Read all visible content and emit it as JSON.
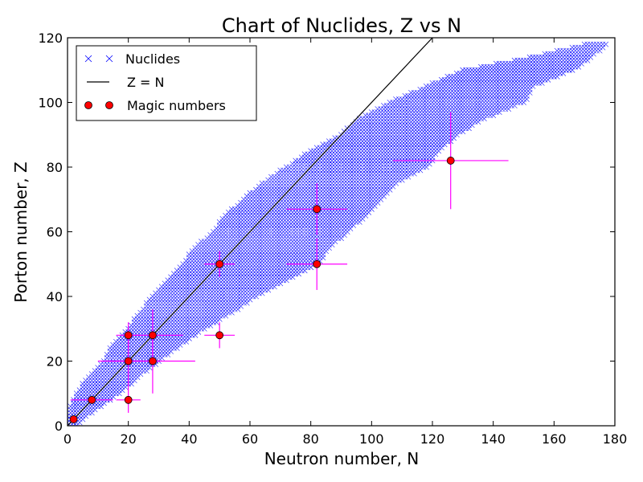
{
  "chart_data": {
    "type": "scatter",
    "title": "Chart of Nuclides, Z vs N",
    "xlabel": "Neutron number, N",
    "ylabel": "Porton number, Z",
    "xlim": [
      0,
      180
    ],
    "ylim": [
      0,
      120
    ],
    "xticks": [
      "0",
      "20",
      "40",
      "60",
      "80",
      "100",
      "120",
      "140",
      "160",
      "180"
    ],
    "yticks": [
      "0",
      "20",
      "40",
      "60",
      "80",
      "100",
      "120"
    ],
    "grid": false,
    "legend_position": "top-left",
    "series": [
      {
        "name": "Nuclides",
        "marker": "x",
        "color": "#0000ff",
        "band": [
          {
            "z": 0,
            "n_min": 0,
            "n_max": 3
          },
          {
            "z": 2,
            "n_min": 0,
            "n_max": 5
          },
          {
            "z": 5,
            "n_min": 1,
            "n_max": 9
          },
          {
            "z": 10,
            "n_min": 3,
            "n_max": 17
          },
          {
            "z": 15,
            "n_min": 7,
            "n_max": 23
          },
          {
            "z": 20,
            "n_min": 12,
            "n_max": 30
          },
          {
            "z": 25,
            "n_min": 15,
            "n_max": 37
          },
          {
            "z": 30,
            "n_min": 20,
            "n_max": 45
          },
          {
            "z": 35,
            "n_min": 24,
            "n_max": 54
          },
          {
            "z": 40,
            "n_min": 28,
            "n_max": 62
          },
          {
            "z": 45,
            "n_min": 33,
            "n_max": 72
          },
          {
            "z": 50,
            "n_min": 38,
            "n_max": 82
          },
          {
            "z": 55,
            "n_min": 42,
            "n_max": 86
          },
          {
            "z": 60,
            "n_min": 48,
            "n_max": 92
          },
          {
            "z": 65,
            "n_min": 52,
            "n_max": 98
          },
          {
            "z": 70,
            "n_min": 58,
            "n_max": 103
          },
          {
            "z": 75,
            "n_min": 64,
            "n_max": 108
          },
          {
            "z": 80,
            "n_min": 72,
            "n_max": 118
          },
          {
            "z": 85,
            "n_min": 80,
            "n_max": 122
          },
          {
            "z": 90,
            "n_min": 90,
            "n_max": 128
          },
          {
            "z": 95,
            "n_min": 96,
            "n_max": 137
          },
          {
            "z": 100,
            "n_min": 106,
            "n_max": 150
          },
          {
            "z": 105,
            "n_min": 118,
            "n_max": 153
          },
          {
            "z": 110,
            "n_min": 130,
            "n_max": 166
          },
          {
            "z": 114,
            "n_min": 152,
            "n_max": 172
          },
          {
            "z": 118,
            "n_min": 170,
            "n_max": 177
          }
        ]
      },
      {
        "name": "Z = N",
        "type": "line",
        "color": "#000000",
        "points": [
          [
            0,
            0
          ],
          [
            120,
            120
          ]
        ]
      },
      {
        "name": "Magic numbers",
        "marker": "o",
        "color": "#ff0000",
        "errorbar_color": "#ff00ff",
        "points": [
          {
            "n": 2,
            "z": 2,
            "xerr": 0,
            "yerr": 0
          },
          {
            "n": 8,
            "z": 8,
            "xerr": 7,
            "yerr": 0
          },
          {
            "n": 20,
            "z": 8,
            "xerr": 4,
            "yerr": 4
          },
          {
            "n": 20,
            "z": 20,
            "xerr": 10,
            "yerr": 8
          },
          {
            "n": 20,
            "z": 28,
            "xerr": 4,
            "yerr": 4
          },
          {
            "n": 28,
            "z": 20,
            "xerr": 14,
            "yerr": 10
          },
          {
            "n": 28,
            "z": 28,
            "xerr": 10,
            "yerr": 8
          },
          {
            "n": 50,
            "z": 28,
            "xerr": 5,
            "yerr": 4
          },
          {
            "n": 50,
            "z": 50,
            "xerr": 5,
            "yerr": 4
          },
          {
            "n": 82,
            "z": 50,
            "xerr": 10,
            "yerr": 8
          },
          {
            "n": 82,
            "z": 67,
            "xerr": 10,
            "yerr": 8
          },
          {
            "n": 126,
            "z": 82,
            "xerr": 19,
            "yerr": 15
          }
        ]
      }
    ],
    "legend": [
      {
        "label": "Nuclides",
        "symbol": "x"
      },
      {
        "label": "Z = N",
        "symbol": "line"
      },
      {
        "label": "Magic numbers",
        "symbol": "o"
      }
    ]
  }
}
